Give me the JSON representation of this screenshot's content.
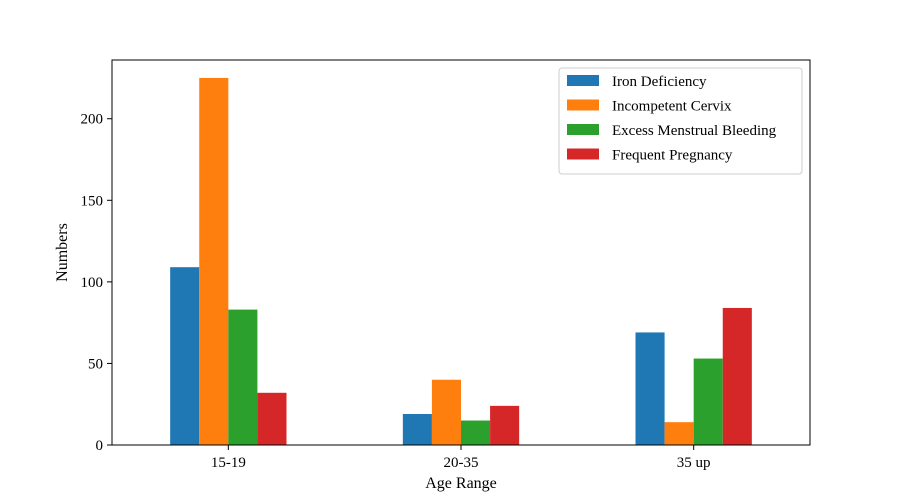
{
  "chart_data": {
    "type": "bar",
    "title": "",
    "xlabel": "Age Range",
    "ylabel": "Numbers",
    "categories": [
      "15-19",
      "20-35",
      "35 up"
    ],
    "ylim": [
      0,
      236
    ],
    "yticks": [
      0,
      50,
      100,
      150,
      200
    ],
    "grid": false,
    "legend_position": "top-right",
    "series": [
      {
        "name": "Iron Deficiency",
        "color": "#1f77b4",
        "values": [
          109,
          19,
          69
        ]
      },
      {
        "name": "Incompetent Cervix",
        "color": "#ff7f0e",
        "values": [
          225,
          40,
          14
        ]
      },
      {
        "name": "Excess Menstrual Bleeding",
        "color": "#2ca02c",
        "values": [
          83,
          15,
          53
        ]
      },
      {
        "name": "Frequent Pregnancy",
        "color": "#d62728",
        "values": [
          32,
          24,
          84
        ]
      }
    ]
  }
}
